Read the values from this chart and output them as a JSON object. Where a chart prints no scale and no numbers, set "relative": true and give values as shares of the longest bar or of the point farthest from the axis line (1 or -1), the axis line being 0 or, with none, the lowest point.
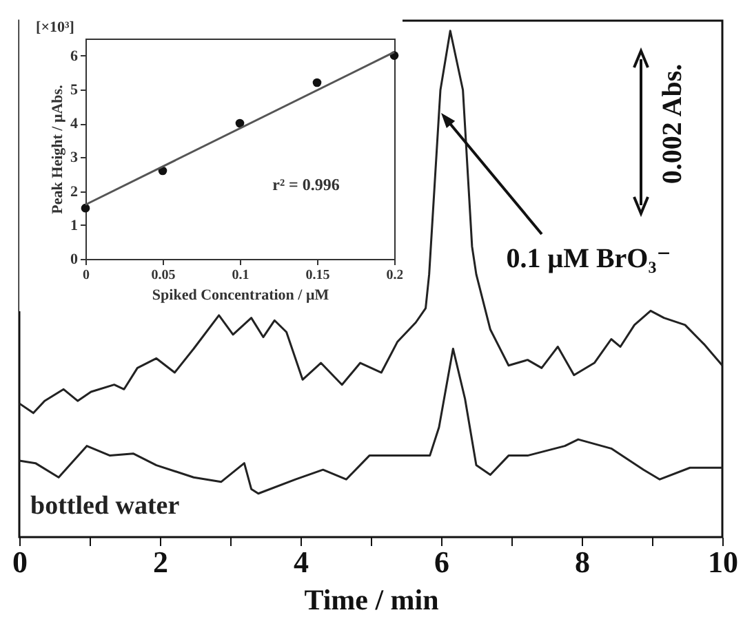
{
  "chart_data": [
    {
      "type": "line",
      "xlabel": "Time / min",
      "relative": true,
      "xlim": [
        0,
        10
      ],
      "xticks": [
        0,
        {
          "value": 1,
          "label": null
        },
        2,
        {
          "value": 3,
          "label": null
        },
        4,
        {
          "value": 5,
          "label": null
        },
        6,
        {
          "value": 7,
          "label": null
        },
        8,
        {
          "value": 9,
          "label": null
        },
        10
      ],
      "annotations": [
        "0.1 μM BrO₃⁻",
        "0.002 Abs."
      ],
      "series": [
        {
          "color": "#222222",
          "x": [
            0,
            0.2,
            0.36,
            0.63,
            0.83,
            1.02,
            1.35,
            1.49,
            1.68,
            1.95,
            2.21,
            2.48,
            2.84,
            3.04,
            3.3,
            3.47,
            3.63,
            3.8,
            4.03,
            4.29,
            4.59,
            4.85,
            5.15,
            5.38,
            5.64,
            5.78,
            5.83,
            5.99,
            6.13,
            6.31,
            6.44,
            6.5,
            6.7,
            6.96,
            7.23,
            7.43,
            7.66,
            7.89,
            8.18,
            8.42,
            8.55,
            8.75,
            8.98,
            9.17,
            9.47,
            9.74,
            10
          ],
          "values": [
            0.264,
            0.245,
            0.269,
            0.292,
            0.269,
            0.287,
            0.301,
            0.292,
            0.334,
            0.353,
            0.325,
            0.372,
            0.438,
            0.4,
            0.433,
            0.395,
            0.428,
            0.405,
            0.311,
            0.344,
            0.301,
            0.344,
            0.325,
            0.386,
            0.424,
            0.452,
            0.519,
            0.883,
            1.0,
            0.883,
            0.574,
            0.519,
            0.41,
            0.339,
            0.35,
            0.334,
            0.376,
            0.32,
            0.344,
            0.391,
            0.376,
            0.419,
            0.447,
            0.433,
            0.419,
            0.381,
            0.339
          ]
        },
        {
          "name": "bottled water",
          "color": "#222222",
          "x": [
            0,
            0.23,
            0.56,
            0.96,
            1.29,
            1.62,
            1.95,
            2.48,
            2.87,
            3.2,
            3.3,
            3.4,
            3.93,
            4.32,
            4.65,
            4.98,
            5.58,
            5.84,
            5.97,
            6.17,
            6.34,
            6.5,
            6.7,
            6.96,
            7.23,
            7.76,
            7.95,
            8.42,
            8.88,
            9.11,
            9.54,
            10
          ],
          "values": [
            0.151,
            0.146,
            0.118,
            0.18,
            0.161,
            0.165,
            0.142,
            0.118,
            0.109,
            0.146,
            0.095,
            0.086,
            0.114,
            0.133,
            0.114,
            0.161,
            0.161,
            0.161,
            0.217,
            0.372,
            0.273,
            0.142,
            0.123,
            0.161,
            0.161,
            0.18,
            0.193,
            0.175,
            0.133,
            0.114,
            0.137,
            0.137
          ]
        }
      ]
    },
    {
      "type": "scatter",
      "xlabel": "Spiked Concentration / μM",
      "ylabel": "Peak Height / μAbs.",
      "xlim": [
        0,
        0.2
      ],
      "ylim": [
        0,
        6.5
      ],
      "xticks": [
        0,
        0.05,
        0.1,
        0.15,
        0.2
      ],
      "yticks": [
        0,
        1,
        2,
        3,
        4,
        5,
        6
      ],
      "annotations": [
        "[×10³]",
        "r² = 0.996"
      ],
      "series": [
        {
          "type": "scatter",
          "marker": "circle",
          "color": "#111111",
          "x": [
            0,
            0.05,
            0.1,
            0.15,
            0.2
          ],
          "values": [
            1.5,
            2.6,
            4.0,
            5.2,
            6.0
          ]
        },
        {
          "type": "line",
          "color": "#555555",
          "x": [
            0,
            0.2
          ],
          "values": [
            1.6,
            6.1
          ]
        }
      ]
    }
  ]
}
